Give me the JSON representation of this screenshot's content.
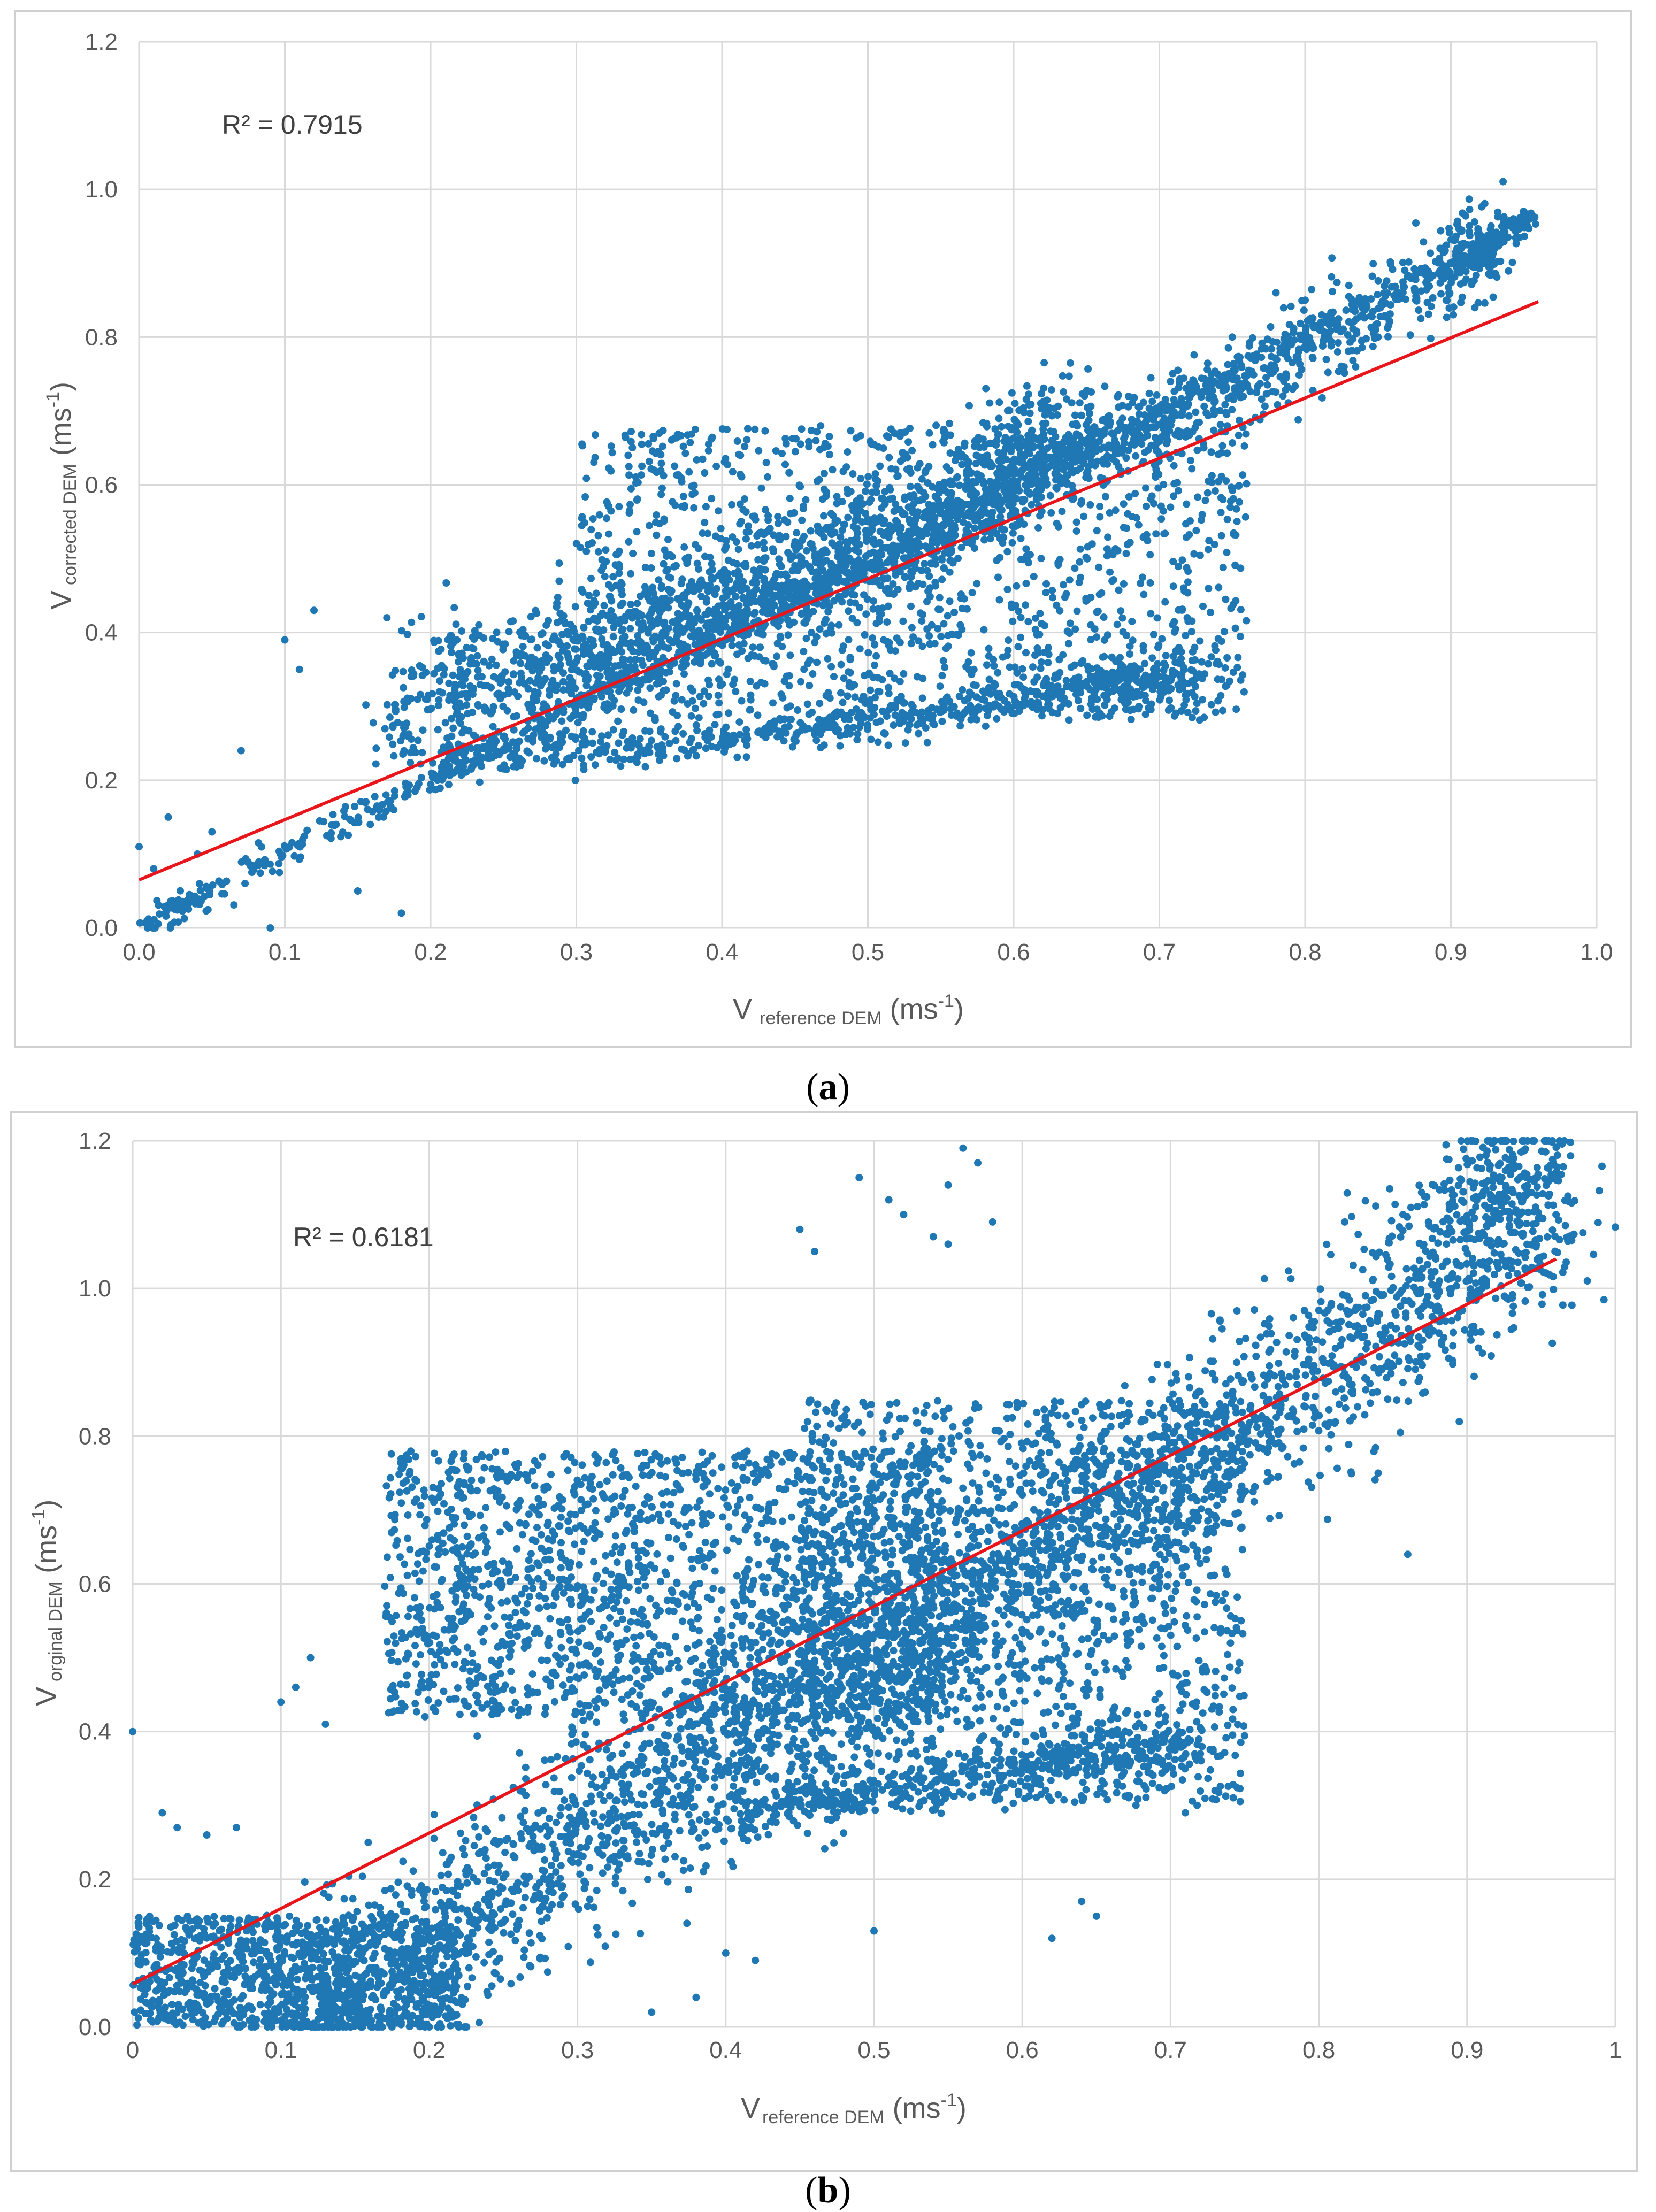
{
  "colors": {
    "point": "#1f77b4",
    "fit_line": "#e8151b",
    "grid": "#d9d9d9",
    "frame": "#d0d0d0",
    "axis_text": "#595959"
  },
  "chart_data": [
    {
      "panel_label": "a",
      "type": "scatter",
      "title": "",
      "xlabel": "V",
      "xlabel_sub": "reference DEM",
      "xlabel_unit": " (ms",
      "xlabel_unit_sup": "-1",
      "xlabel_unit_end": ")",
      "ylabel": "V",
      "ylabel_sub": "corrected DEM",
      "ylabel_unit": " (ms",
      "ylabel_unit_sup": "-1",
      "ylabel_unit_end": ")",
      "xlim": [
        0,
        1.0
      ],
      "ylim": [
        0,
        1.2
      ],
      "xticks": [
        "0.0",
        "0.1",
        "0.2",
        "0.3",
        "0.4",
        "0.5",
        "0.6",
        "0.7",
        "0.8",
        "0.9",
        "1.0"
      ],
      "yticks": [
        "0.0",
        "0.2",
        "0.4",
        "0.6",
        "0.8",
        "1.0",
        "1.2"
      ],
      "grid": true,
      "annotation": "R² = 0.7915",
      "trendline": {
        "x": [
          0.0,
          0.96
        ],
        "y": [
          0.065,
          0.848
        ]
      },
      "series": [
        {
          "name": "identity band",
          "shape": "band",
          "polyline": [
            [
              0,
              0
            ],
            [
              0.1,
              0.1
            ],
            [
              0.2,
              0.2
            ],
            [
              0.3,
              0.3
            ],
            [
              0.4,
              0.4
            ],
            [
              0.5,
              0.5
            ],
            [
              0.6,
              0.6
            ],
            [
              0.7,
              0.7
            ],
            [
              0.8,
              0.8
            ],
            [
              0.9,
              0.9
            ],
            [
              0.96,
              0.965
            ]
          ],
          "spread": 0.01,
          "count": 900
        },
        {
          "name": "upper branch",
          "shape": "band",
          "polyline": [
            [
              0.17,
              0.27
            ],
            [
              0.25,
              0.33
            ],
            [
              0.35,
              0.38
            ],
            [
              0.45,
              0.46
            ],
            [
              0.55,
              0.54
            ],
            [
              0.62,
              0.62
            ],
            [
              0.68,
              0.67
            ],
            [
              0.75,
              0.72
            ],
            [
              0.82,
              0.8
            ],
            [
              0.9,
              0.89
            ],
            [
              0.93,
              0.93
            ]
          ],
          "spread": 0.03,
          "count": 1300
        },
        {
          "name": "lower branch",
          "shape": "band",
          "polyline": [
            [
              0.21,
              0.23
            ],
            [
              0.3,
              0.24
            ],
            [
              0.4,
              0.26
            ],
            [
              0.5,
              0.28
            ],
            [
              0.6,
              0.31
            ],
            [
              0.67,
              0.33
            ],
            [
              0.72,
              0.335
            ]
          ],
          "spread": 0.015,
          "count": 700
        },
        {
          "name": "fan region",
          "shape": "region",
          "bounds": {
            "x": [
              0.3,
              0.76
            ],
            "y": [
              0.28,
              0.68
            ]
          },
          "count": 1400
        },
        {
          "name": "upper wedge",
          "shape": "band",
          "polyline": [
            [
              0.2,
              0.35
            ],
            [
              0.3,
              0.38
            ],
            [
              0.4,
              0.45
            ],
            [
              0.5,
              0.52
            ],
            [
              0.55,
              0.56
            ],
            [
              0.6,
              0.64
            ],
            [
              0.64,
              0.7
            ]
          ],
          "spread": 0.04,
          "count": 1000
        },
        {
          "name": "scattered outliers",
          "shape": "points",
          "points": [
            [
              0.0,
              0.11
            ],
            [
              0.02,
              0.15
            ],
            [
              0.07,
              0.24
            ],
            [
              0.1,
              0.39
            ],
            [
              0.11,
              0.35
            ],
            [
              0.12,
              0.43
            ],
            [
              0.17,
              0.42
            ],
            [
              0.18,
              0.02
            ],
            [
              0.15,
              0.05
            ],
            [
              0.09,
              0.0
            ],
            [
              0.01,
              0.08
            ],
            [
              0.05,
              0.13
            ],
            [
              0.04,
              0.1
            ],
            [
              0.78,
              0.86
            ],
            [
              0.8,
              0.85
            ],
            [
              0.83,
              0.87
            ],
            [
              0.85,
              0.8
            ],
            [
              0.75,
              0.8
            ],
            [
              0.74,
              0.75
            ]
          ]
        }
      ]
    },
    {
      "panel_label": "b",
      "type": "scatter",
      "title": "",
      "xlabel": "V",
      "xlabel_sub": "reference DEM",
      "xlabel_unit": " (ms",
      "xlabel_unit_sup": "-1",
      "xlabel_unit_end": ")",
      "ylabel": "V",
      "ylabel_sub": "orginal DEM",
      "ylabel_unit": " (ms",
      "ylabel_unit_sup": "-1",
      "ylabel_unit_end": ")",
      "xlim": [
        0,
        1
      ],
      "ylim": [
        0,
        1.2
      ],
      "xticks": [
        "0",
        "0.1",
        "0.2",
        "0.3",
        "0.4",
        "0.5",
        "0.6",
        "0.7",
        "0.8",
        "0.9",
        "1"
      ],
      "yticks": [
        "0.0",
        "0.2",
        "0.4",
        "0.6",
        "0.8",
        "1.0",
        "1.2"
      ],
      "grid": true,
      "annotation": "R² = 0.6181",
      "trendline": {
        "x": [
          0.0,
          0.96
        ],
        "y": [
          0.058,
          1.04
        ]
      },
      "series": [
        {
          "name": "main diagonal band",
          "shape": "band",
          "polyline": [
            [
              0.1,
              0.0
            ],
            [
              0.2,
              0.12
            ],
            [
              0.3,
              0.25
            ],
            [
              0.4,
              0.38
            ],
            [
              0.5,
              0.5
            ],
            [
              0.6,
              0.62
            ],
            [
              0.7,
              0.77
            ],
            [
              0.8,
              0.88
            ],
            [
              0.9,
              1.05
            ],
            [
              0.95,
              1.16
            ]
          ],
          "spread": 0.06,
          "count": 3200
        },
        {
          "name": "upper cloud",
          "shape": "region",
          "bounds": {
            "x": [
              0.17,
              0.55
            ],
            "y": [
              0.42,
              0.78
            ]
          },
          "count": 1800
        },
        {
          "name": "lower branch",
          "shape": "band",
          "polyline": [
            [
              0.4,
              0.28
            ],
            [
              0.5,
              0.32
            ],
            [
              0.6,
              0.35
            ],
            [
              0.66,
              0.37
            ],
            [
              0.72,
              0.38
            ]
          ],
          "spread": 0.02,
          "count": 500
        },
        {
          "name": "fan region",
          "shape": "region",
          "bounds": {
            "x": [
              0.45,
              0.75
            ],
            "y": [
              0.3,
              0.85
            ]
          },
          "count": 1400
        },
        {
          "name": "low cluster",
          "shape": "region",
          "bounds": {
            "x": [
              0.0,
              0.22
            ],
            "y": [
              0.0,
              0.15
            ]
          },
          "count": 900
        },
        {
          "name": "scattered outliers",
          "shape": "points",
          "points": [
            [
              0.0,
              0.4
            ],
            [
              0.02,
              0.29
            ],
            [
              0.03,
              0.27
            ],
            [
              0.05,
              0.26
            ],
            [
              0.07,
              0.27
            ],
            [
              0.1,
              0.44
            ],
            [
              0.11,
              0.46
            ],
            [
              0.12,
              0.5
            ],
            [
              0.13,
              0.41
            ],
            [
              0.38,
              0.04
            ],
            [
              0.35,
              0.02
            ],
            [
              0.4,
              0.1
            ],
            [
              0.42,
              0.09
            ],
            [
              0.45,
              1.08
            ],
            [
              0.46,
              1.05
            ],
            [
              0.49,
              1.15
            ],
            [
              0.51,
              1.12
            ],
            [
              0.52,
              1.1
            ],
            [
              0.54,
              1.07
            ],
            [
              0.55,
              1.14
            ],
            [
              0.56,
              1.19
            ],
            [
              0.57,
              1.17
            ],
            [
              0.58,
              1.09
            ],
            [
              0.55,
              1.06
            ],
            [
              0.5,
              0.13
            ],
            [
              0.62,
              0.12
            ],
            [
              0.64,
              0.17
            ],
            [
              0.65,
              0.15
            ],
            [
              0.71,
              0.29
            ],
            [
              0.73,
              0.32
            ],
            [
              0.86,
              0.64
            ],
            [
              0.83,
              0.9
            ],
            [
              0.84,
              0.75
            ],
            [
              0.87,
              0.93
            ],
            [
              0.88,
              0.97
            ],
            [
              0.91,
              1.0
            ],
            [
              0.94,
              1.15
            ],
            [
              0.96,
              1.1
            ],
            [
              0.92,
              1.12
            ]
          ]
        }
      ]
    }
  ]
}
